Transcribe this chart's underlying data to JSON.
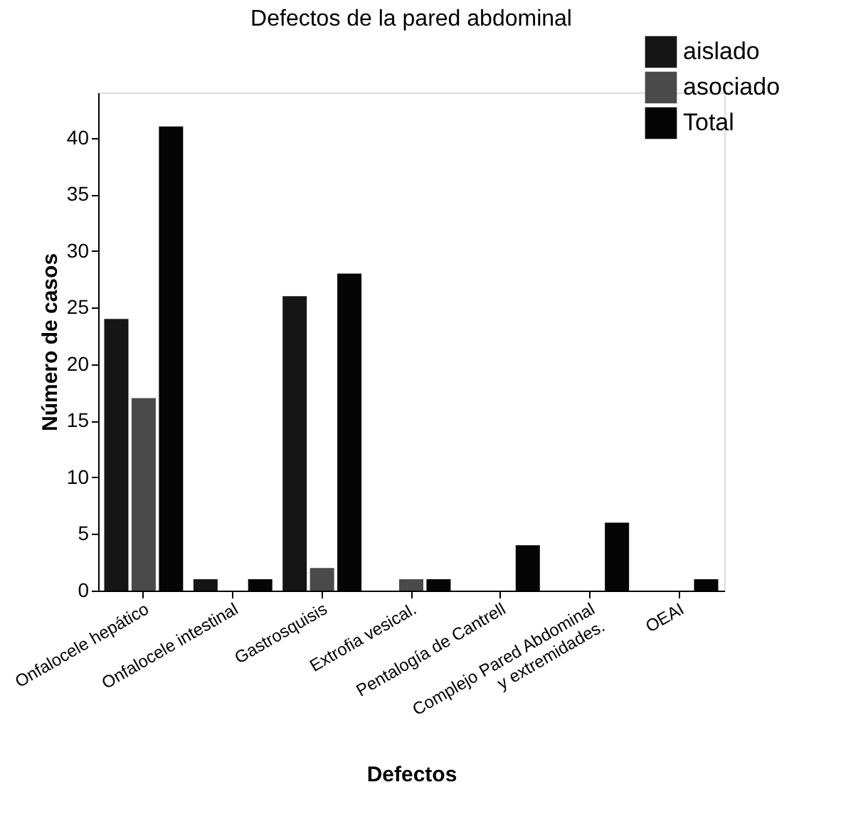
{
  "chart_data": {
    "type": "bar",
    "title": "Defectos de la pared abdominal",
    "xlabel": "Defectos",
    "ylabel": "Número de casos",
    "categories": [
      "Onfalocele  hepático",
      "Onfalocele  intestinal",
      "Gastrosquisis",
      "Extrofia  vesical.",
      "Pentalogía de Cantrell",
      "Complejo Pared Abdominal\ny extremidades.",
      "OEAI"
    ],
    "series": [
      {
        "name": "aislado",
        "color": "#151515",
        "values": [
          24,
          1,
          26,
          0,
          0,
          0,
          0
        ]
      },
      {
        "name": "asociado",
        "color": "#4a4a4a",
        "values": [
          17,
          0,
          2,
          1,
          0,
          0,
          0
        ]
      },
      {
        "name": "Total",
        "color": "#050505",
        "values": [
          41,
          1,
          28,
          1,
          4,
          6,
          1
        ]
      }
    ],
    "ylim": [
      0,
      44
    ],
    "yticks": [
      0,
      5,
      10,
      15,
      20,
      25,
      30,
      35,
      40
    ],
    "grid": false,
    "legend": "top right"
  }
}
